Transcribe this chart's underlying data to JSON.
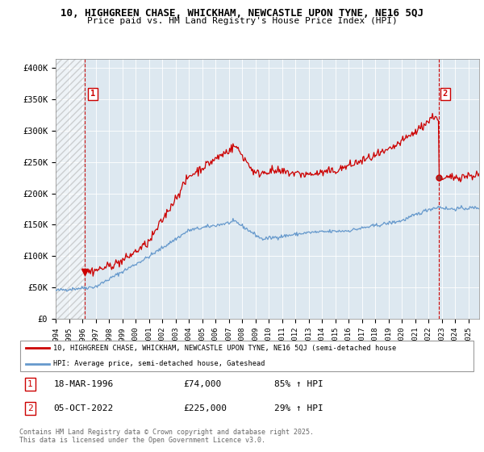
{
  "title1": "10, HIGHGREEN CHASE, WHICKHAM, NEWCASTLE UPON TYNE, NE16 5QJ",
  "title2": "Price paid vs. HM Land Registry's House Price Index (HPI)",
  "ylabel_ticks": [
    "£0",
    "£50K",
    "£100K",
    "£150K",
    "£200K",
    "£250K",
    "£300K",
    "£350K",
    "£400K"
  ],
  "ytick_vals": [
    0,
    50000,
    100000,
    150000,
    200000,
    250000,
    300000,
    350000,
    400000
  ],
  "ylim": [
    0,
    415000
  ],
  "xlim_start": 1994.0,
  "xlim_end": 2025.8,
  "hpi_color": "#6699cc",
  "price_color": "#cc0000",
  "plot_bg_color": "#dde8f0",
  "point1_date": "18-MAR-1996",
  "point1_price": 74000,
  "point1_label": "85% ↑ HPI",
  "point1_x": 1996.21,
  "point2_date": "05-OCT-2022",
  "point2_price": 225000,
  "point2_label": "29% ↑ HPI",
  "point2_x": 2022.76,
  "legend_line1": "10, HIGHGREEN CHASE, WHICKHAM, NEWCASTLE UPON TYNE, NE16 5QJ (semi-detached house",
  "legend_line2": "HPI: Average price, semi-detached house, Gateshead",
  "footnote": "Contains HM Land Registry data © Crown copyright and database right 2025.\nThis data is licensed under the Open Government Licence v3.0.",
  "background_color": "#ffffff",
  "grid_color": "#ffffff"
}
